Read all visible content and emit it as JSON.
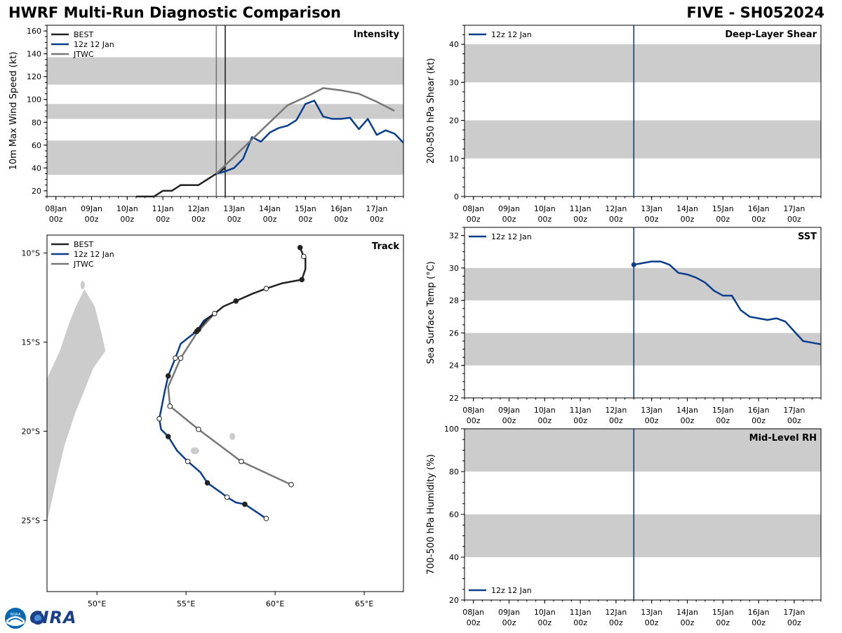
{
  "header": {
    "title": "HWRF Multi-Run Diagnostic Comparison",
    "storm": "FIVE - SH052024"
  },
  "logo": {
    "text": "CIRA",
    "badge": "NOAA"
  },
  "colors": {
    "best": "#222222",
    "run": "#0a3e8c",
    "jtwc": "#777777",
    "band": "#cccccc",
    "land": "#cccccc"
  },
  "chart_data": [
    {
      "id": "intensity",
      "type": "line",
      "title": "Intensity",
      "ylabel": "10m Max Wind Speed (kt)",
      "xlim": [
        -0.25,
        9.75
      ],
      "ylim": [
        15,
        165
      ],
      "yticks": [
        20,
        40,
        60,
        80,
        100,
        120,
        140,
        160
      ],
      "xticks": [
        0,
        1,
        2,
        3,
        4,
        5,
        6,
        7,
        8,
        9
      ],
      "xtick_labels": [
        [
          "08Jan",
          "00z"
        ],
        [
          "09Jan",
          "00z"
        ],
        [
          "10Jan",
          "00z"
        ],
        [
          "11Jan",
          "00z"
        ],
        [
          "12Jan",
          "00z"
        ],
        [
          "13Jan",
          "00z"
        ],
        [
          "14Jan",
          "00z"
        ],
        [
          "15Jan",
          "00z"
        ],
        [
          "16Jan",
          "00z"
        ],
        [
          "17Jan",
          "00z"
        ]
      ],
      "bands": [
        [
          34,
          64
        ],
        [
          83,
          96
        ],
        [
          113,
          137
        ]
      ],
      "vlines": [
        {
          "x": 4.5,
          "series": "jtwc"
        },
        {
          "x": 4.75,
          "series": "best"
        }
      ],
      "legend": [
        "BEST",
        "12z 12 Jan",
        "JTWC"
      ],
      "series": [
        {
          "name": "BEST",
          "key": "best",
          "x": [
            2.25,
            2.5,
            2.75,
            3.0,
            3.25,
            3.5,
            3.75,
            4.0,
            4.25,
            4.5,
            4.75
          ],
          "y": [
            15,
            15,
            15,
            20,
            20,
            25,
            25,
            25,
            30,
            35,
            40
          ]
        },
        {
          "name": "12z 12 Jan",
          "key": "run",
          "x": [
            4.5,
            4.75,
            5.0,
            5.25,
            5.5,
            5.75,
            6.0,
            6.25,
            6.5,
            6.75,
            7.0,
            7.25,
            7.5,
            7.75,
            8.0,
            8.25,
            8.5,
            8.75,
            9.0,
            9.25,
            9.5,
            9.75
          ],
          "y": [
            35,
            37,
            40,
            48,
            67,
            63,
            71,
            75,
            77,
            82,
            96,
            99,
            85,
            83,
            83,
            84,
            74,
            83,
            69,
            73,
            70,
            62
          ]
        },
        {
          "name": "JTWC",
          "key": "jtwc",
          "x": [
            4.5,
            5.0,
            5.5,
            6.0,
            6.5,
            7.0,
            7.5,
            8.0,
            8.5,
            9.0,
            9.5
          ],
          "y": [
            35,
            50,
            65,
            80,
            95,
            102,
            110,
            108,
            105,
            98,
            90
          ]
        }
      ]
    },
    {
      "id": "shear",
      "type": "line",
      "title": "Deep-Layer Shear",
      "ylabel": "200-850 hPa Shear (kt)",
      "xlim": [
        -0.25,
        9.75
      ],
      "ylim": [
        0,
        45
      ],
      "yticks": [
        0,
        10,
        20,
        30,
        40
      ],
      "xticks": [
        0,
        1,
        2,
        3,
        4,
        5,
        6,
        7,
        8,
        9
      ],
      "xtick_labels": [
        [
          "08Jan",
          "00z"
        ],
        [
          "09Jan",
          "00z"
        ],
        [
          "10Jan",
          "00z"
        ],
        [
          "11Jan",
          "00z"
        ],
        [
          "12Jan",
          "00z"
        ],
        [
          "13Jan",
          "00z"
        ],
        [
          "14Jan",
          "00z"
        ],
        [
          "15Jan",
          "00z"
        ],
        [
          "16Jan",
          "00z"
        ],
        [
          "17Jan",
          "00z"
        ]
      ],
      "bands": [
        [
          10,
          20
        ],
        [
          30,
          40
        ]
      ],
      "vlines": [
        {
          "x": 4.5,
          "series": "run"
        }
      ],
      "legend": [
        "12z 12 Jan"
      ],
      "series": []
    },
    {
      "id": "sst",
      "type": "line",
      "title": "SST",
      "ylabel": "Sea Surface Temp (°C)",
      "xlim": [
        -0.25,
        9.75
      ],
      "ylim": [
        22,
        32.5
      ],
      "yticks": [
        22,
        24,
        26,
        28,
        30,
        32
      ],
      "xticks": [
        0,
        1,
        2,
        3,
        4,
        5,
        6,
        7,
        8,
        9
      ],
      "xtick_labels": [
        [
          "08Jan",
          "00z"
        ],
        [
          "09Jan",
          "00z"
        ],
        [
          "10Jan",
          "00z"
        ],
        [
          "11Jan",
          "00z"
        ],
        [
          "12Jan",
          "00z"
        ],
        [
          "13Jan",
          "00z"
        ],
        [
          "14Jan",
          "00z"
        ],
        [
          "15Jan",
          "00z"
        ],
        [
          "16Jan",
          "00z"
        ],
        [
          "17Jan",
          "00z"
        ]
      ],
      "bands": [
        [
          24,
          26
        ],
        [
          28,
          30
        ]
      ],
      "vlines": [
        {
          "x": 4.5,
          "series": "run"
        }
      ],
      "legend": [
        "12z 12 Jan"
      ],
      "series": [
        {
          "name": "12z 12 Jan",
          "key": "run",
          "marker_first": true,
          "x": [
            4.5,
            4.75,
            5.0,
            5.25,
            5.5,
            5.75,
            6.0,
            6.25,
            6.5,
            6.75,
            7.0,
            7.25,
            7.5,
            7.75,
            8.0,
            8.25,
            8.5,
            8.75,
            9.0,
            9.25,
            9.5,
            9.75
          ],
          "y": [
            30.2,
            30.3,
            30.4,
            30.4,
            30.2,
            29.7,
            29.6,
            29.4,
            29.1,
            28.6,
            28.3,
            28.3,
            27.4,
            27.0,
            26.9,
            26.8,
            26.9,
            26.7,
            26.1,
            25.5,
            25.4,
            25.3
          ]
        }
      ]
    },
    {
      "id": "rh",
      "type": "line",
      "title": "Mid-Level RH",
      "ylabel": "700-500 hPa Humidity (%)",
      "xlim": [
        -0.25,
        9.75
      ],
      "ylim": [
        20,
        100
      ],
      "yticks": [
        20,
        40,
        60,
        80,
        100
      ],
      "xticks": [
        0,
        1,
        2,
        3,
        4,
        5,
        6,
        7,
        8,
        9
      ],
      "xtick_labels": [
        [
          "08Jan",
          "00z"
        ],
        [
          "09Jan",
          "00z"
        ],
        [
          "10Jan",
          "00z"
        ],
        [
          "11Jan",
          "00z"
        ],
        [
          "12Jan",
          "00z"
        ],
        [
          "13Jan",
          "00z"
        ],
        [
          "14Jan",
          "00z"
        ],
        [
          "15Jan",
          "00z"
        ],
        [
          "16Jan",
          "00z"
        ],
        [
          "17Jan",
          "00z"
        ]
      ],
      "bands": [
        [
          40,
          60
        ],
        [
          80,
          100
        ]
      ],
      "vlines": [
        {
          "x": 4.5,
          "series": "run"
        }
      ],
      "legend": [
        "12z 12 Jan"
      ],
      "series": []
    },
    {
      "id": "track",
      "type": "line",
      "title": "Track",
      "xlim": [
        47.2,
        67.2
      ],
      "ylim": [
        -29,
        -9
      ],
      "xticks": [
        50,
        55,
        60,
        65
      ],
      "xtick_labels": [
        "50°E",
        "55°E",
        "60°E",
        "65°E"
      ],
      "yticks": [
        -10,
        -15,
        -20,
        -25
      ],
      "ytick_labels": [
        "10°S",
        "15°S",
        "20°S",
        "25°S"
      ],
      "legend": [
        "BEST",
        "12z 12 Jan",
        "JTWC"
      ],
      "series": [
        {
          "name": "BEST",
          "key": "best",
          "lon": [
            61.4,
            61.6,
            61.7,
            61.7,
            61.5,
            60.4,
            59.5,
            58.7,
            57.8,
            57.1,
            56.6,
            56.2,
            55.7,
            55.4
          ],
          "lat": [
            -9.7,
            -10.2,
            -10.3,
            -10.9,
            -11.5,
            -11.7,
            -12.0,
            -12.3,
            -12.7,
            -13.0,
            -13.4,
            -13.7,
            -14.3,
            -14.5
          ],
          "filled": [
            true,
            false,
            false,
            false,
            true,
            false,
            false,
            false,
            true,
            false,
            false,
            false,
            true,
            false
          ],
          "marker": [
            true,
            true,
            false,
            false,
            true,
            false,
            true,
            false,
            true,
            false,
            false,
            false,
            true,
            false
          ]
        },
        {
          "name": "12z 12 Jan",
          "key": "run",
          "lon": [
            56.6,
            56.0,
            55.6,
            55.2,
            54.7,
            54.4,
            54.0,
            53.8,
            53.6,
            53.5,
            53.6,
            54.0,
            54.5,
            55.1,
            55.8,
            56.2,
            56.9,
            57.3,
            57.8,
            58.3,
            58.9,
            59.5
          ],
          "lat": [
            -13.4,
            -13.8,
            -14.4,
            -14.7,
            -15.1,
            -15.9,
            -16.9,
            -17.8,
            -18.8,
            -19.3,
            -19.9,
            -20.3,
            -21.1,
            -21.7,
            -22.3,
            -22.9,
            -23.4,
            -23.7,
            -24.0,
            -24.1,
            -24.5,
            -24.9
          ],
          "filled": [
            false,
            false,
            true,
            false,
            false,
            false,
            true,
            false,
            false,
            false,
            false,
            true,
            false,
            false,
            false,
            true,
            false,
            false,
            false,
            true,
            false,
            false
          ],
          "marker": [
            false,
            false,
            true,
            false,
            false,
            true,
            true,
            false,
            false,
            true,
            false,
            true,
            false,
            true,
            false,
            true,
            false,
            true,
            false,
            true,
            false,
            true
          ]
        },
        {
          "name": "JTWC",
          "key": "jtwc",
          "lon": [
            56.6,
            55.6,
            54.7,
            54.0,
            54.1,
            55.7,
            58.1,
            60.9
          ],
          "lat": [
            -13.4,
            -14.5,
            -15.9,
            -17.5,
            -18.6,
            -19.9,
            -21.7,
            -23.0
          ],
          "filled": [
            false,
            false,
            false,
            false,
            false,
            false,
            false,
            false
          ],
          "marker": [
            true,
            false,
            true,
            false,
            true,
            true,
            true,
            true
          ]
        }
      ]
    }
  ]
}
